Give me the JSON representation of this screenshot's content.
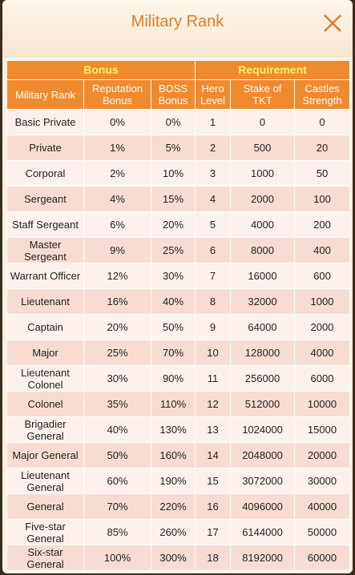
{
  "header": {
    "title": "Military Rank"
  },
  "table": {
    "groups": [
      "Bonus",
      "Requirement"
    ],
    "columns": [
      "Military Rank",
      "Reputation Bonus",
      "BOSS Bonus",
      "Hero Level",
      "Stake of TKT",
      "Castles Strength"
    ],
    "rows": [
      [
        "Basic Private",
        "0%",
        "0%",
        "1",
        "0",
        "0"
      ],
      [
        "Private",
        "1%",
        "5%",
        "2",
        "500",
        "20"
      ],
      [
        "Corporal",
        "2%",
        "10%",
        "3",
        "1000",
        "50"
      ],
      [
        "Sergeant",
        "4%",
        "15%",
        "4",
        "2000",
        "100"
      ],
      [
        "Staff Sergeant",
        "6%",
        "20%",
        "5",
        "4000",
        "200"
      ],
      [
        "Master Sergeant",
        "9%",
        "25%",
        "6",
        "8000",
        "400"
      ],
      [
        "Warrant Officer",
        "12%",
        "30%",
        "7",
        "16000",
        "600"
      ],
      [
        "Lieutenant",
        "16%",
        "40%",
        "8",
        "32000",
        "1000"
      ],
      [
        "Captain",
        "20%",
        "50%",
        "9",
        "64000",
        "2000"
      ],
      [
        "Major",
        "25%",
        "70%",
        "10",
        "128000",
        "4000"
      ],
      [
        "Lieutenant Colonel",
        "30%",
        "90%",
        "11",
        "256000",
        "6000"
      ],
      [
        "Colonel",
        "35%",
        "110%",
        "12",
        "512000",
        "10000"
      ],
      [
        "Brigadier General",
        "40%",
        "130%",
        "13",
        "1024000",
        "15000"
      ],
      [
        "Major General",
        "50%",
        "160%",
        "14",
        "2048000",
        "20000"
      ],
      [
        "Lieutenant General",
        "60%",
        "190%",
        "15",
        "3072000",
        "30000"
      ],
      [
        "General",
        "70%",
        "220%",
        "16",
        "4096000",
        "40000"
      ],
      [
        "Five-star General",
        "85%",
        "260%",
        "17",
        "6144000",
        "50000"
      ],
      [
        "Six-star General",
        "100%",
        "300%",
        "18",
        "8192000",
        "60000"
      ]
    ]
  }
}
